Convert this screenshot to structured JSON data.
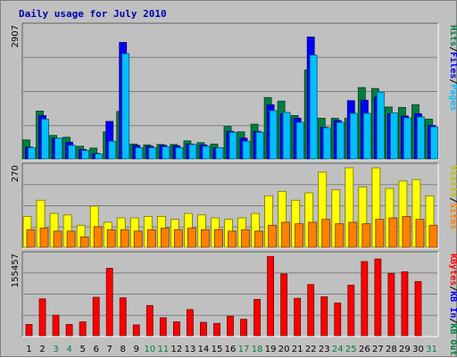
{
  "chart_data": {
    "type": "bar",
    "title": "Daily usage for July 2010",
    "categories": [
      "1",
      "2",
      "3",
      "4",
      "5",
      "6",
      "7",
      "8",
      "9",
      "10",
      "11",
      "12",
      "13",
      "14",
      "15",
      "16",
      "17",
      "18",
      "19",
      "20",
      "21",
      "22",
      "23",
      "24",
      "25",
      "26",
      "27",
      "28",
      "29",
      "30",
      "31"
    ],
    "weekend_days": [
      "3",
      "4",
      "10",
      "11",
      "17",
      "18",
      "24",
      "25",
      "31"
    ],
    "panels": [
      {
        "id": "hits-files-pages",
        "ymax": 2907,
        "ymax_label": "2907",
        "axis_labels": [
          {
            "text": "Hits",
            "color": "#008040"
          },
          {
            "text": "/",
            "color": "#000000"
          },
          {
            "text": "Files",
            "color": "#0000ff"
          },
          {
            "text": "/",
            "color": "#000000"
          },
          {
            "text": "Pages",
            "color": "#00c0ff"
          }
        ],
        "series": [
          {
            "name": "Hits",
            "color": "#008040",
            "values": [
              420,
              1060,
              520,
              480,
              280,
              240,
              600,
              1050,
              330,
              310,
              320,
              320,
              400,
              360,
              330,
              720,
              600,
              770,
              1360,
              1280,
              960,
              1970,
              900,
              900,
              900,
              1580,
              1560,
              1150,
              1140,
              1200,
              880
            ]
          },
          {
            "name": "Files",
            "color": "#0000ff",
            "values": [
              260,
              960,
              460,
              370,
              210,
              120,
              830,
              2580,
              300,
              280,
              300,
              290,
              330,
              310,
              250,
              610,
              460,
              610,
              1200,
              1000,
              900,
              2700,
              700,
              850,
              1290,
              1300,
              1370,
              1000,
              950,
              1000,
              740
            ]
          },
          {
            "name": "Pages",
            "color": "#00c0ff",
            "values": [
              250,
              880,
              460,
              300,
              190,
              110,
              390,
              2330,
              250,
              250,
              270,
              250,
              320,
              280,
              250,
              590,
              390,
              590,
              1070,
              1030,
              810,
              2300,
              690,
              810,
              1010,
              1010,
              1480,
              1020,
              910,
              930,
              710
            ]
          }
        ]
      },
      {
        "id": "visits-sites",
        "ymax": 270,
        "ymax_label": "270",
        "axis_labels": [
          {
            "text": "Visits",
            "color": "#c0c000"
          },
          {
            "text": "/",
            "color": "#000000"
          },
          {
            "text": "Sites",
            "color": "#ff8000"
          }
        ],
        "series": [
          {
            "name": "Visits",
            "color": "#ffff00",
            "values": [
              105,
              160,
              115,
              110,
              75,
              140,
              85,
              100,
              100,
              105,
              105,
              95,
              115,
              110,
              100,
              95,
              100,
              115,
              175,
              190,
              160,
              185,
              255,
              195,
              270,
              205,
              270,
              200,
              225,
              230,
              175
            ]
          },
          {
            "name": "Sites",
            "color": "#ff8000",
            "values": [
              60,
              65,
              55,
              55,
              35,
              70,
              60,
              60,
              55,
              60,
              65,
              60,
              65,
              60,
              60,
              55,
              60,
              55,
              75,
              85,
              80,
              85,
              95,
              80,
              85,
              80,
              95,
              100,
              105,
              95,
              75
            ]
          }
        ]
      },
      {
        "id": "kbytes",
        "ymax": 155457,
        "ymax_label": "155457",
        "axis_labels": [
          {
            "text": "KBytes",
            "color": "#ff0000"
          },
          {
            "text": "/",
            "color": "#000000"
          },
          {
            "text": "KB In",
            "color": "#0000ff"
          },
          {
            "text": "/",
            "color": "#000000"
          },
          {
            "text": "KB Out",
            "color": "#008040"
          }
        ],
        "series": [
          {
            "name": "KBytes",
            "color": "#ff0000",
            "values": [
              22000,
              72000,
              40000,
              22000,
              27000,
              75000,
              132000,
              74000,
              21000,
              59000,
              35000,
              27000,
              51000,
              26000,
              24000,
              38000,
              32000,
              71000,
              155000,
              121000,
              73000,
              100000,
              76000,
              64000,
              99000,
              145000,
              150000,
              122000,
              125000,
              106000,
              0
            ]
          }
        ]
      }
    ]
  }
}
